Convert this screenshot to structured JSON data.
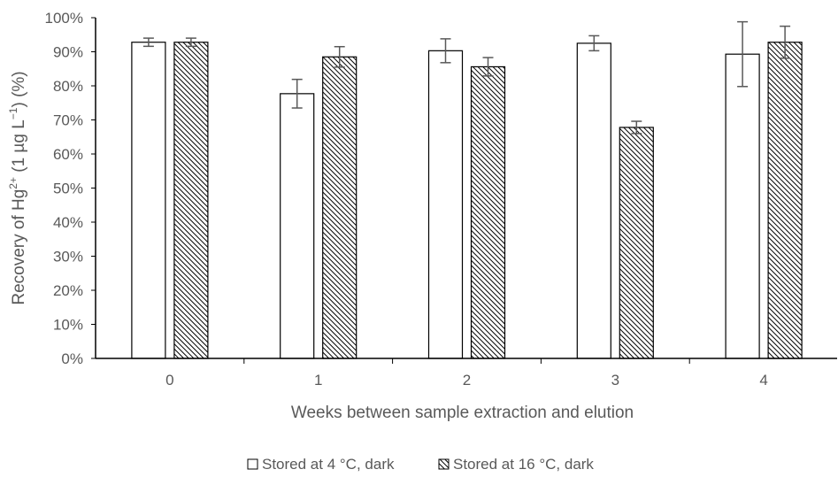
{
  "chart_data": {
    "type": "bar",
    "categories": [
      "0",
      "1",
      "2",
      "3",
      "4"
    ],
    "series": [
      {
        "name": "Stored at 4 °C, dark",
        "values": [
          92.8,
          77.7,
          90.3,
          92.5,
          89.3
        ],
        "error": [
          1.2,
          4.2,
          3.5,
          2.2,
          9.5
        ],
        "color": "#ffffff",
        "pattern": "solid"
      },
      {
        "name": "Stored at 16 °C, dark",
        "values": [
          92.8,
          88.5,
          85.6,
          67.8,
          92.8
        ],
        "error": [
          1.2,
          3.0,
          2.7,
          1.8,
          4.7
        ],
        "color": "#000000",
        "pattern": "diagonal-hatch"
      }
    ],
    "xlabel": "Weeks between sample extraction and elution",
    "ylabel_parts": {
      "pre": "Recovery of Hg",
      "sup1": "2+",
      "mid": " (1 µg L",
      "sup2": "−1",
      "post": ") (%)"
    },
    "ylim": [
      0,
      100
    ],
    "y_ticks": [
      "0%",
      "10%",
      "20%",
      "30%",
      "40%",
      "50%",
      "60%",
      "70%",
      "80%",
      "90%",
      "100%"
    ],
    "grid": false,
    "legend_position": "bottom"
  }
}
